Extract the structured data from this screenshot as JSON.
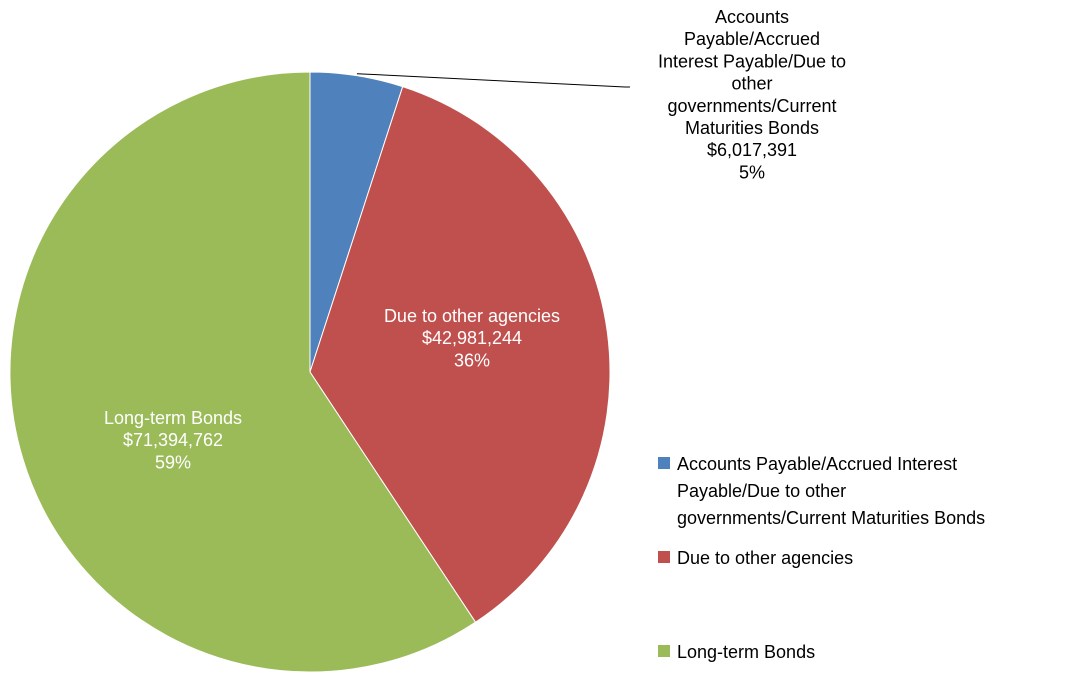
{
  "chart_data": {
    "type": "pie",
    "title": "",
    "legend_position": "right",
    "slices": [
      {
        "label": "Accounts Payable/Accrued Interest Payable/Due to other governments/Current Maturities Bonds",
        "value": 6017391,
        "value_text": "$6,017,391",
        "percent_text": "5%",
        "color": "#4F81BD",
        "legend_lines": [
          "Accounts Payable/Accrued Interest",
          "Payable/Due to other",
          "governments/Current Maturities Bonds"
        ],
        "callout_lines": [
          "Accounts",
          "Payable/Accrued",
          "Interest Payable/Due to",
          "other",
          "governments/Current",
          "Maturities Bonds"
        ],
        "label_color": "#000000"
      },
      {
        "label": "Due to other agencies",
        "value": 42981244,
        "value_text": "$42,981,244",
        "percent_text": "36%",
        "color": "#C0504D",
        "legend_lines": [
          "Due to other agencies"
        ],
        "callout_lines": [
          "Due to other agencies"
        ],
        "label_color": "#ffffff"
      },
      {
        "label": "Long-term Bonds",
        "value": 71394762,
        "value_text": "$71,394,762",
        "percent_text": "59%",
        "color": "#9BBB59",
        "legend_lines": [
          "Long-term Bonds"
        ],
        "callout_lines": [
          "Long-term Bonds"
        ],
        "label_color": "#ffffff"
      }
    ]
  }
}
